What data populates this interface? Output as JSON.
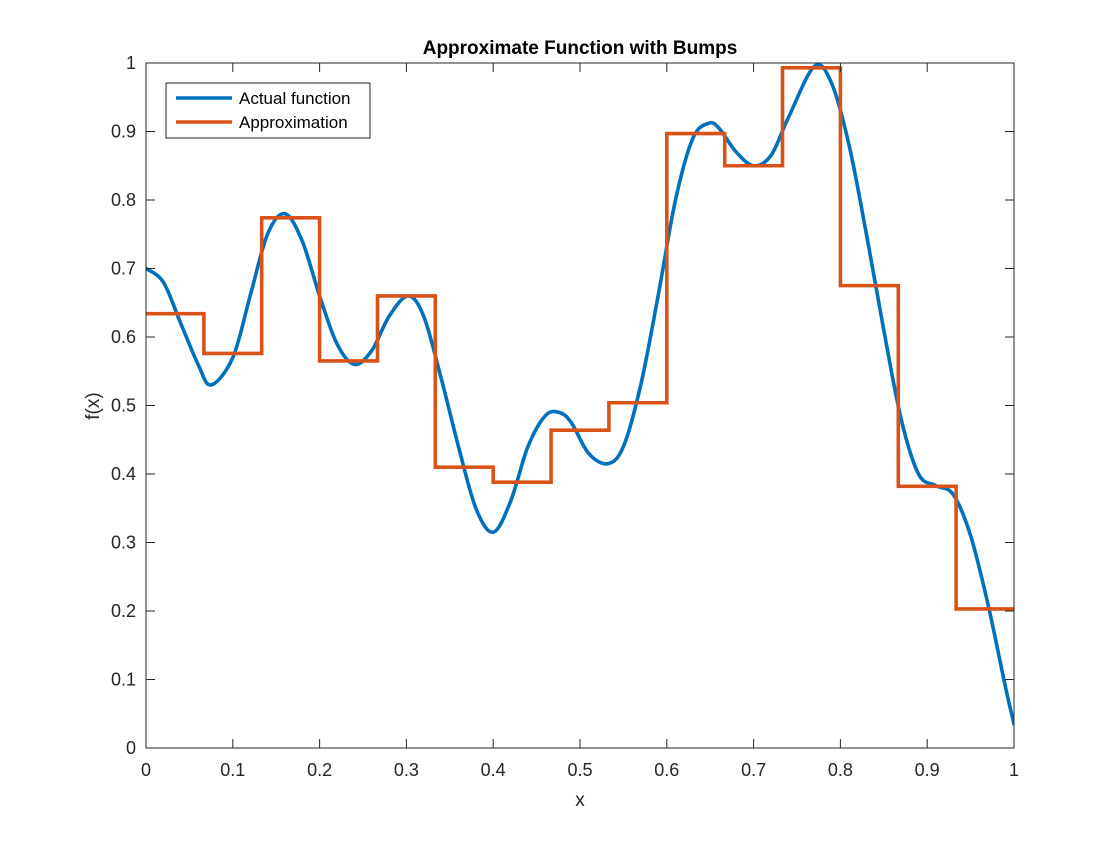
{
  "chart_data": {
    "type": "line",
    "title": "Approximate Function with Bumps",
    "xlabel": "x",
    "ylabel": "f(x)",
    "xlim": [
      0,
      1
    ],
    "ylim": [
      0,
      1
    ],
    "xticks": [
      0,
      0.1,
      0.2,
      0.3,
      0.4,
      0.5,
      0.6,
      0.7,
      0.8,
      0.9,
      1
    ],
    "xtick_labels": [
      "0",
      "0.1",
      "0.2",
      "0.3",
      "0.4",
      "0.5",
      "0.6",
      "0.7",
      "0.8",
      "0.9",
      "1"
    ],
    "yticks": [
      0,
      0.1,
      0.2,
      0.3,
      0.4,
      0.5,
      0.6,
      0.7,
      0.8,
      0.9,
      1
    ],
    "ytick_labels": [
      "0",
      "0.1",
      "0.2",
      "0.3",
      "0.4",
      "0.5",
      "0.6",
      "0.7",
      "0.8",
      "0.9",
      "1"
    ],
    "grid": false,
    "legend_position": "top-left",
    "series": [
      {
        "name": "Actual function",
        "color": "#0072BD",
        "style": "smooth",
        "x": [
          0,
          0.02,
          0.04,
          0.06,
          0.075,
          0.1,
          0.12,
          0.14,
          0.16,
          0.18,
          0.2,
          0.22,
          0.24,
          0.26,
          0.28,
          0.302,
          0.32,
          0.34,
          0.36,
          0.38,
          0.4,
          0.42,
          0.44,
          0.46,
          0.476,
          0.49,
          0.51,
          0.532,
          0.55,
          0.57,
          0.59,
          0.61,
          0.63,
          0.648,
          0.66,
          0.68,
          0.7,
          0.72,
          0.74,
          0.77,
          0.79,
          0.81,
          0.83,
          0.85,
          0.87,
          0.89,
          0.91,
          0.93,
          0.95,
          0.97,
          0.99,
          1.0
        ],
        "values": [
          0.7,
          0.68,
          0.62,
          0.56,
          0.53,
          0.57,
          0.66,
          0.75,
          0.78,
          0.74,
          0.66,
          0.59,
          0.56,
          0.58,
          0.63,
          0.66,
          0.63,
          0.54,
          0.44,
          0.35,
          0.315,
          0.36,
          0.44,
          0.485,
          0.49,
          0.475,
          0.43,
          0.415,
          0.44,
          0.53,
          0.66,
          0.8,
          0.89,
          0.912,
          0.905,
          0.87,
          0.85,
          0.865,
          0.92,
          0.995,
          0.97,
          0.88,
          0.75,
          0.61,
          0.48,
          0.4,
          0.383,
          0.37,
          0.31,
          0.21,
          0.09,
          0.035
        ]
      },
      {
        "name": "Approximation",
        "color": "#D95319",
        "style": "steps",
        "edges": [
          0,
          0.0667,
          0.1333,
          0.2,
          0.2667,
          0.3333,
          0.4,
          0.4667,
          0.5333,
          0.6,
          0.6667,
          0.7333,
          0.8,
          0.8667,
          0.9333,
          1.0
        ],
        "values": [
          0.634,
          0.576,
          0.774,
          0.565,
          0.66,
          0.41,
          0.388,
          0.464,
          0.504,
          0.897,
          0.85,
          0.993,
          0.675,
          0.382,
          0.203
        ]
      }
    ]
  }
}
